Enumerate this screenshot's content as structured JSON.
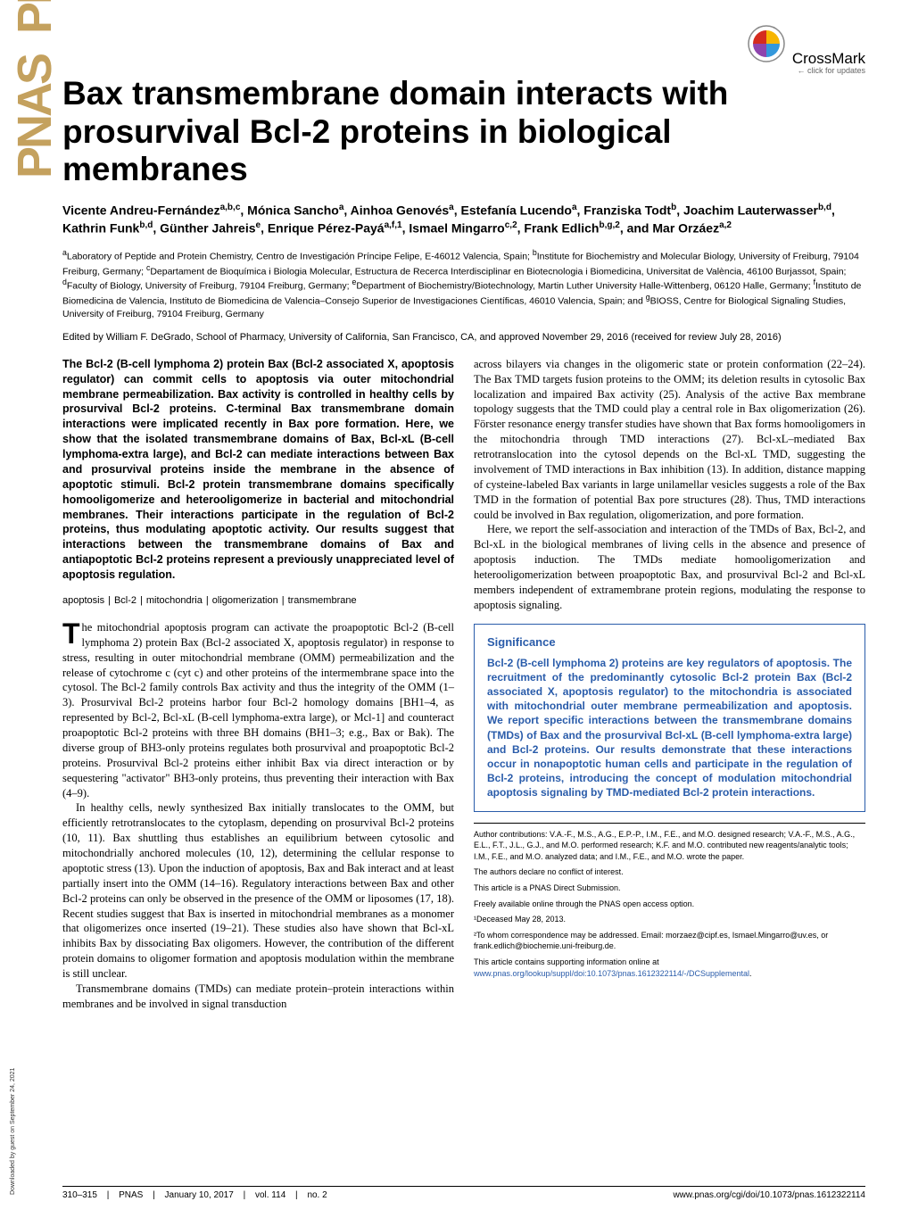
{
  "crossmark": {
    "label": "CrossMark",
    "sub": "← click for updates"
  },
  "title": "Bax transmembrane domain interacts with prosurvival Bcl-2 proteins in biological membranes",
  "authors_html": "Vicente Andreu-Fernández<sup>a,b,c</sup>, Mónica Sancho<sup>a</sup>, Ainhoa Genovés<sup>a</sup>, Estefanía Lucendo<sup>a</sup>, Franziska Todt<sup>b</sup>, Joachim Lauterwasser<sup>b,d</sup>, Kathrin Funk<sup>b,d</sup>, Günther Jahreis<sup>e</sup>, Enrique Pérez-Payá<sup>a,f,1</sup>, Ismael Mingarro<sup>c,2</sup>, Frank Edlich<sup>b,g,2</sup>, and Mar Orzáez<sup>a,2</sup>",
  "affiliations_html": "<sup>a</sup>Laboratory of Peptide and Protein Chemistry, Centro de Investigación Príncipe Felipe, E-46012 Valencia, Spain; <sup>b</sup>Institute for Biochemistry and Molecular Biology, University of Freiburg, 79104 Freiburg, Germany; <sup>c</sup>Departament de Bioquímica i Biologia Molecular, Estructura de Recerca Interdisciplinar en Biotecnologia i Biomedicina, Universitat de València, 46100 Burjassot, Spain; <sup>d</sup>Faculty of Biology, University of Freiburg, 79104 Freiburg, Germany; <sup>e</sup>Department of Biochemistry/Biotechnology, Martin Luther University Halle-Wittenberg, 06120 Halle, Germany; <sup>f</sup>Instituto de Biomedicina de Valencia, Instituto de Biomedicina de Valencia–Consejo Superior de Investigaciones Científicas, 46010 Valencia, Spain; and <sup>g</sup>BIOSS, Centre for Biological Signaling Studies, University of Freiburg, 79104 Freiburg, Germany",
  "edited_by": "Edited by William F. DeGrado, School of Pharmacy, University of California, San Francisco, CA, and approved November 29, 2016 (received for review July 28, 2016)",
  "abstract": "The Bcl-2 (B-cell lymphoma 2) protein Bax (Bcl-2 associated X, apoptosis regulator) can commit cells to apoptosis via outer mitochondrial membrane permeabilization. Bax activity is controlled in healthy cells by prosurvival Bcl-2 proteins. C-terminal Bax transmembrane domain interactions were implicated recently in Bax pore formation. Here, we show that the isolated transmembrane domains of Bax, Bcl-xL (B-cell lymphoma-extra large), and Bcl-2 can mediate interactions between Bax and prosurvival proteins inside the membrane in the absence of apoptotic stimuli. Bcl-2 protein transmembrane domains specifically homooligomerize and heterooligomerize in bacterial and mitochondrial membranes. Their interactions participate in the regulation of Bcl-2 proteins, thus modulating apoptotic activity. Our results suggest that interactions between the transmembrane domains of Bax and antiapoptotic Bcl-2 proteins represent a previously unappreciated level of apoptosis regulation.",
  "keywords": [
    "apoptosis",
    "Bcl-2",
    "mitochondria",
    "oligomerization",
    "transmembrane"
  ],
  "left_body": {
    "p1_dropcap": "T",
    "p1": "he mitochondrial apoptosis program can activate the proapoptotic Bcl-2 (B-cell lymphoma 2) protein Bax (Bcl-2 associated X, apoptosis regulator) in response to stress, resulting in outer mitochondrial membrane (OMM) permeabilization and the release of cytochrome c (cyt c) and other proteins of the intermembrane space into the cytosol. The Bcl-2 family controls Bax activity and thus the integrity of the OMM (1–3). Prosurvival Bcl-2 proteins harbor four Bcl-2 homology domains [BH1–4, as represented by Bcl-2, Bcl-xL (B-cell lymphoma-extra large), or Mcl-1] and counteract proapoptotic Bcl-2 proteins with three BH domains (BH1–3; e.g., Bax or Bak). The diverse group of BH3-only proteins regulates both prosurvival and proapoptotic Bcl-2 proteins. Prosurvival Bcl-2 proteins either inhibit Bax via direct interaction or by sequestering \"activator\" BH3-only proteins, thus preventing their interaction with Bax (4–9).",
    "p2": "In healthy cells, newly synthesized Bax initially translocates to the OMM, but efficiently retrotranslocates to the cytoplasm, depending on prosurvival Bcl-2 proteins (10, 11). Bax shuttling thus establishes an equilibrium between cytosolic and mitochondrially anchored molecules (10, 12), determining the cellular response to apoptotic stress (13). Upon the induction of apoptosis, Bax and Bak interact and at least partially insert into the OMM (14–16). Regulatory interactions between Bax and other Bcl-2 proteins can only be observed in the presence of the OMM or liposomes (17, 18). Recent studies suggest that Bax is inserted in mitochondrial membranes as a monomer that oligomerizes once inserted (19–21). These studies also have shown that Bcl-xL inhibits Bax by dissociating Bax oligomers. However, the contribution of the different protein domains to oligomer formation and apoptosis modulation within the membrane is still unclear.",
    "p3": "Transmembrane domains (TMDs) can mediate protein–protein interactions within membranes and be involved in signal transduction"
  },
  "right_body": {
    "p1": "across bilayers via changes in the oligomeric state or protein conformation (22–24). The Bax TMD targets fusion proteins to the OMM; its deletion results in cytosolic Bax localization and impaired Bax activity (25). Analysis of the active Bax membrane topology suggests that the TMD could play a central role in Bax oligomerization (26). Förster resonance energy transfer studies have shown that Bax forms homooligomers in the mitochondria through TMD interactions (27). Bcl-xL–mediated Bax retrotranslocation into the cytosol depends on the Bcl-xL TMD, suggesting the involvement of TMD interactions in Bax inhibition (13). In addition, distance mapping of cysteine-labeled Bax variants in large unilamellar vesicles suggests a role of the Bax TMD in the formation of potential Bax pore structures (28). Thus, TMD interactions could be involved in Bax regulation, oligomerization, and pore formation.",
    "p2": "Here, we report the self-association and interaction of the TMDs of Bax, Bcl-2, and Bcl-xL in the biological membranes of living cells in the absence and presence of apoptosis induction. The TMDs mediate homooligomerization and heterooligomerization between proapoptotic Bax, and prosurvival Bcl-2 and Bcl-xL members independent of extramembrane protein regions, modulating the response to apoptosis signaling."
  },
  "significance": {
    "title": "Significance",
    "body": "Bcl-2 (B-cell lymphoma 2) proteins are key regulators of apoptosis. The recruitment of the predominantly cytosolic Bcl-2 protein Bax (Bcl-2 associated X, apoptosis regulator) to the mitochondria is associated with mitochondrial outer membrane permeabilization and apoptosis. We report specific interactions between the transmembrane domains (TMDs) of Bax and the prosurvival Bcl-xL (B-cell lymphoma-extra large) and Bcl-2 proteins. Our results demonstrate that these interactions occur in nonapoptotic human cells and participate in the regulation of Bcl-2 proteins, introducing the concept of modulation mitochondrial apoptosis signaling by TMD-mediated Bcl-2 protein interactions."
  },
  "notes": {
    "author_contrib": "Author contributions: V.A.-F., M.S., A.G., E.P.-P., I.M., F.E., and M.O. designed research; V.A.-F., M.S., A.G., E.L., F.T., J.L., G.J., and M.O. performed research; K.F. and M.O. contributed new reagents/analytic tools; I.M., F.E., and M.O. analyzed data; and I.M., F.E., and M.O. wrote the paper.",
    "conflict": "The authors declare no conflict of interest.",
    "direct": "This article is a PNAS Direct Submission.",
    "open_access": "Freely available online through the PNAS open access option.",
    "deceased": "¹Deceased May 28, 2013.",
    "correspondence": "²To whom correspondence may be addressed. Email: morzaez@cipf.es, Ismael.Mingarro@uv.es, or frank.edlich@biochemie.uni-freiburg.de.",
    "supporting": "This article contains supporting information online at ",
    "supporting_link": "www.pnas.org/lookup/suppl/doi:10.1073/pnas.1612322114/-/DCSupplemental",
    "supporting_end": "."
  },
  "footer": {
    "pages": "310–315",
    "journal": "PNAS",
    "date": "January 10, 2017",
    "vol": "vol. 114",
    "no": "no. 2",
    "doi": "www.pnas.org/cgi/doi/10.1073/pnas.1612322114"
  },
  "download_note": "Downloaded by guest on September 24, 2021",
  "colors": {
    "brand_blue": "#2a5caa",
    "pnas_gold": "#c4a15e",
    "crossmark_red": "#d52b1e",
    "crossmark_yellow": "#f7b500",
    "crossmark_purple": "#8e44ad",
    "crossmark_blue": "#3498db"
  }
}
